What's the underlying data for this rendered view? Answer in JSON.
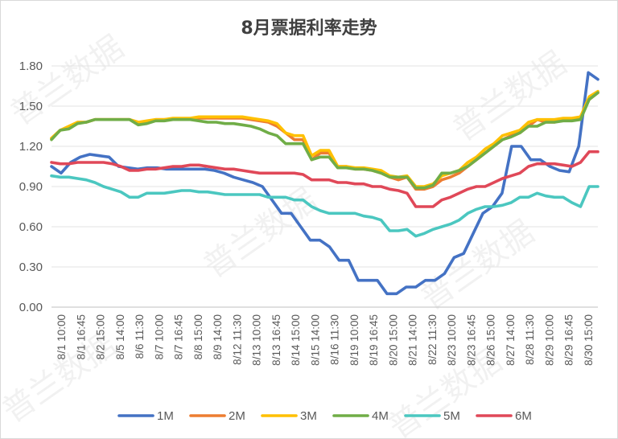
{
  "chart_data": {
    "type": "line",
    "title": "8月票据利率走势",
    "ylim": [
      0,
      1.8
    ],
    "y_ticks": [
      "0.00",
      "0.30",
      "0.60",
      "0.90",
      "1.20",
      "1.50",
      "1.80"
    ],
    "grid": true,
    "legend_position": "bottom",
    "x_labels": [
      "8/1 10:00",
      "8/1 16:45",
      "8/2 15:00",
      "8/5 14:00",
      "8/6 11:30",
      "8/7 10:00",
      "8/7 16:45",
      "8/8 15:00",
      "8/9 14:00",
      "8/12 11:30",
      "8/13 10:00",
      "8/13 16:45",
      "8/14 15:00",
      "8/15 14:00",
      "8/16 11:30",
      "8/19 10:00",
      "8/19 16:45",
      "8/20 15:00",
      "8/21 14:00",
      "8/22 11:30",
      "8/23 10:00",
      "8/23 16:45",
      "8/26 15:00",
      "8/27 14:00",
      "8/28 11:30",
      "8/29 10:00",
      "8/29 16:45",
      "8/30 15:00"
    ],
    "series": [
      {
        "name": "1M",
        "color": "#4472c4",
        "values": [
          1.05,
          1.0,
          1.08,
          1.12,
          1.14,
          1.13,
          1.12,
          1.05,
          1.04,
          1.03,
          1.04,
          1.04,
          1.03,
          1.03,
          1.03,
          1.03,
          1.03,
          1.02,
          1.0,
          0.97,
          0.95,
          0.93,
          0.9,
          0.8,
          0.7,
          0.7,
          0.6,
          0.5,
          0.5,
          0.45,
          0.35,
          0.35,
          0.2,
          0.2,
          0.2,
          0.1,
          0.1,
          0.15,
          0.15,
          0.2,
          0.2,
          0.25,
          0.37,
          0.4,
          0.55,
          0.7,
          0.75,
          0.85,
          1.2,
          1.2,
          1.1,
          1.1,
          1.05,
          1.02,
          1.01,
          1.2,
          1.75,
          1.7
        ]
      },
      {
        "name": "2M",
        "color": "#ed7d31",
        "values": [
          1.26,
          1.32,
          1.34,
          1.38,
          1.38,
          1.4,
          1.4,
          1.4,
          1.4,
          1.4,
          1.38,
          1.38,
          1.4,
          1.4,
          1.4,
          1.4,
          1.4,
          1.41,
          1.41,
          1.41,
          1.41,
          1.41,
          1.41,
          1.4,
          1.39,
          1.38,
          1.35,
          1.3,
          1.25,
          1.25,
          1.1,
          1.15,
          1.15,
          1.05,
          1.05,
          1.03,
          1.03,
          1.02,
          1.0,
          0.97,
          0.95,
          0.97,
          0.88,
          0.88,
          0.9,
          0.95,
          0.97,
          1.0,
          1.05,
          1.1,
          1.15,
          1.2,
          1.25,
          1.28,
          1.3,
          1.35,
          1.4,
          1.38,
          1.38,
          1.4,
          1.4,
          1.42,
          1.55,
          1.6
        ]
      },
      {
        "name": "3M",
        "color": "#ffc000",
        "values": [
          1.26,
          1.32,
          1.35,
          1.38,
          1.38,
          1.4,
          1.4,
          1.4,
          1.4,
          1.4,
          1.38,
          1.39,
          1.4,
          1.4,
          1.41,
          1.41,
          1.41,
          1.42,
          1.42,
          1.42,
          1.42,
          1.42,
          1.42,
          1.41,
          1.4,
          1.39,
          1.37,
          1.3,
          1.28,
          1.28,
          1.13,
          1.17,
          1.17,
          1.05,
          1.05,
          1.04,
          1.04,
          1.03,
          1.02,
          0.98,
          0.97,
          0.98,
          0.9,
          0.9,
          0.92,
          0.98,
          1.0,
          1.02,
          1.08,
          1.12,
          1.18,
          1.22,
          1.28,
          1.3,
          1.32,
          1.38,
          1.4,
          1.4,
          1.4,
          1.41,
          1.41,
          1.42,
          1.57,
          1.61
        ]
      },
      {
        "name": "4M",
        "color": "#70ad47",
        "values": [
          1.25,
          1.32,
          1.33,
          1.37,
          1.38,
          1.4,
          1.4,
          1.4,
          1.4,
          1.4,
          1.36,
          1.37,
          1.39,
          1.39,
          1.4,
          1.4,
          1.4,
          1.39,
          1.38,
          1.38,
          1.37,
          1.37,
          1.36,
          1.35,
          1.33,
          1.3,
          1.28,
          1.22,
          1.22,
          1.22,
          1.1,
          1.12,
          1.12,
          1.04,
          1.04,
          1.03,
          1.03,
          1.02,
          1.0,
          0.97,
          0.97,
          0.97,
          0.89,
          0.89,
          0.91,
          1.0,
          1.0,
          1.02,
          1.05,
          1.1,
          1.15,
          1.2,
          1.25,
          1.27,
          1.3,
          1.35,
          1.35,
          1.38,
          1.38,
          1.39,
          1.39,
          1.4,
          1.55,
          1.6
        ]
      },
      {
        "name": "5M",
        "color": "#4bc7c0",
        "values": [
          0.98,
          0.97,
          0.97,
          0.96,
          0.95,
          0.93,
          0.9,
          0.88,
          0.86,
          0.82,
          0.82,
          0.85,
          0.85,
          0.85,
          0.86,
          0.87,
          0.87,
          0.86,
          0.86,
          0.85,
          0.84,
          0.84,
          0.84,
          0.84,
          0.84,
          0.82,
          0.82,
          0.82,
          0.8,
          0.8,
          0.75,
          0.72,
          0.7,
          0.7,
          0.7,
          0.7,
          0.68,
          0.67,
          0.65,
          0.57,
          0.57,
          0.58,
          0.53,
          0.55,
          0.58,
          0.6,
          0.62,
          0.65,
          0.7,
          0.73,
          0.75,
          0.75,
          0.76,
          0.78,
          0.82,
          0.82,
          0.85,
          0.83,
          0.82,
          0.82,
          0.78,
          0.75,
          0.9,
          0.9
        ]
      },
      {
        "name": "6M",
        "color": "#e04858",
        "values": [
          1.08,
          1.07,
          1.07,
          1.08,
          1.08,
          1.08,
          1.08,
          1.07,
          1.05,
          1.02,
          1.02,
          1.03,
          1.03,
          1.04,
          1.05,
          1.05,
          1.06,
          1.06,
          1.05,
          1.04,
          1.03,
          1.03,
          1.02,
          1.01,
          1.0,
          1.0,
          1.0,
          1.0,
          1.0,
          0.99,
          0.95,
          0.95,
          0.95,
          0.93,
          0.93,
          0.92,
          0.92,
          0.9,
          0.9,
          0.88,
          0.87,
          0.85,
          0.75,
          0.75,
          0.75,
          0.8,
          0.82,
          0.85,
          0.88,
          0.9,
          0.9,
          0.93,
          0.96,
          0.98,
          1.0,
          1.05,
          1.07,
          1.07,
          1.07,
          1.06,
          1.05,
          1.08,
          1.16,
          1.16
        ]
      }
    ]
  },
  "watermark": "普兰数据"
}
